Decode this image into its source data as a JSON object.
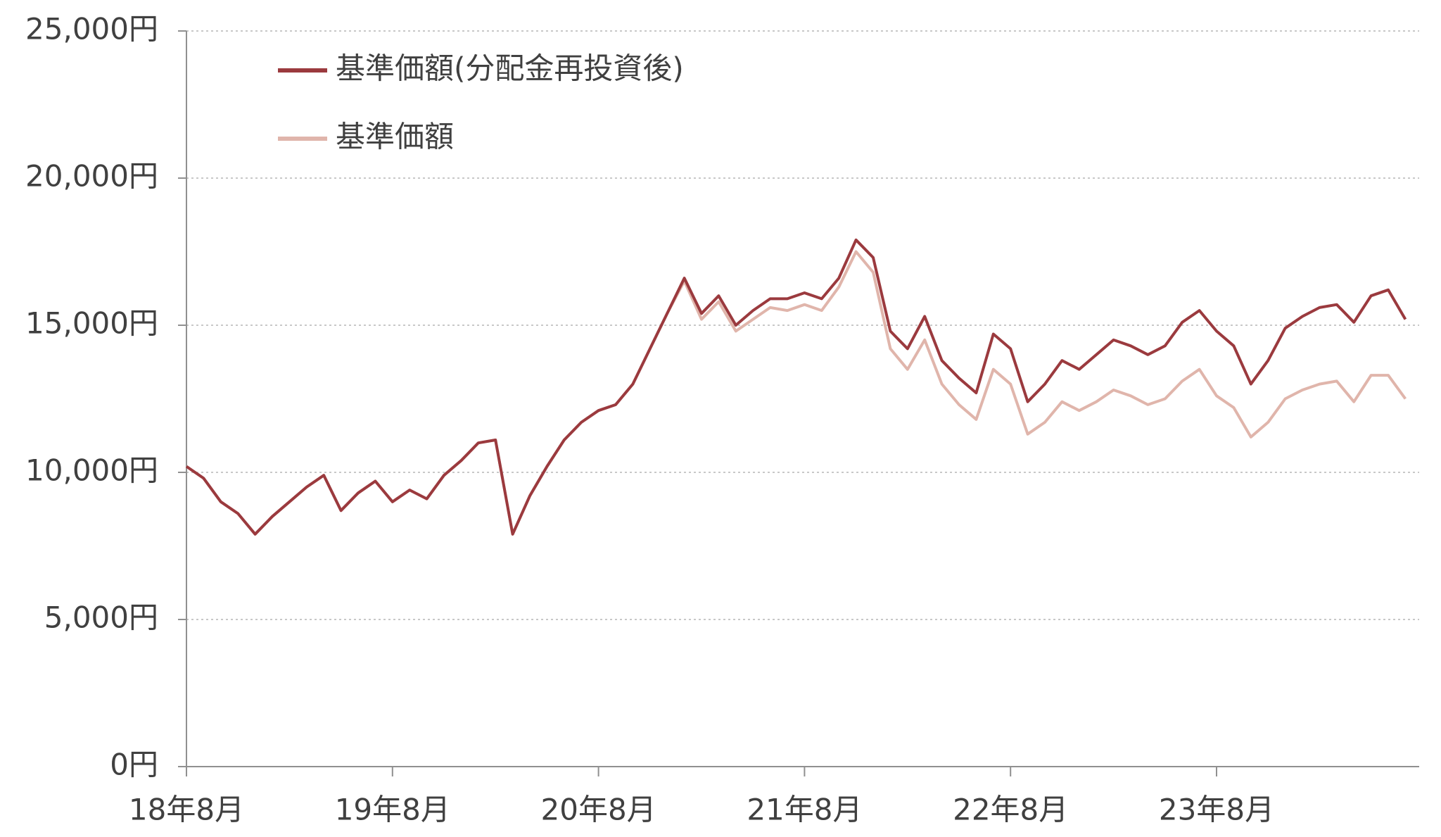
{
  "chart_data": {
    "type": "line",
    "categories": [
      "18年8月",
      null,
      null,
      null,
      null,
      null,
      null,
      null,
      null,
      null,
      null,
      null,
      "19年8月",
      null,
      null,
      null,
      null,
      null,
      null,
      null,
      null,
      null,
      null,
      null,
      "20年8月",
      null,
      null,
      null,
      null,
      null,
      null,
      null,
      null,
      null,
      null,
      null,
      "21年8月",
      null,
      null,
      null,
      null,
      null,
      null,
      null,
      null,
      null,
      null,
      null,
      "22年8月",
      null,
      null,
      null,
      null,
      null,
      null,
      null,
      null,
      null,
      null,
      null,
      "23年8月",
      null,
      null,
      null,
      null,
      null,
      null,
      null,
      null,
      null,
      null,
      null
    ],
    "series": [
      {
        "name": "基準価額(分配金再投資後)",
        "color": "#9b3a3e",
        "values": [
          10200,
          9800,
          9000,
          8600,
          7900,
          8500,
          9000,
          9500,
          9900,
          8700,
          9300,
          9700,
          9000,
          9400,
          9100,
          9900,
          10400,
          11000,
          11100,
          7900,
          9200,
          10200,
          11100,
          11700,
          12100,
          12300,
          13000,
          14200,
          15400,
          16600,
          15400,
          16000,
          15000,
          15500,
          15900,
          15900,
          16100,
          15900,
          16600,
          17900,
          17300,
          14800,
          14200,
          15300,
          13800,
          13200,
          12700,
          14700,
          14200,
          12400,
          13000,
          13800,
          13500,
          14000,
          14500,
          14300,
          14000,
          14300,
          15100,
          15500,
          14800,
          14300,
          13000,
          13800,
          14900,
          15300,
          15600,
          15700,
          15100,
          16000,
          16200,
          15200
        ]
      },
      {
        "name": "基準価額",
        "color": "#e0b5ab",
        "values": [
          10200,
          9800,
          9000,
          8600,
          7900,
          8500,
          9000,
          9500,
          9900,
          8700,
          9300,
          9700,
          9000,
          9400,
          9100,
          9900,
          10400,
          11000,
          11100,
          7900,
          9200,
          10200,
          11100,
          11700,
          12100,
          12300,
          13000,
          14200,
          15400,
          16500,
          15200,
          15800,
          14800,
          15200,
          15600,
          15500,
          15700,
          15500,
          16300,
          17500,
          16800,
          14200,
          13500,
          14500,
          13000,
          12300,
          11800,
          13500,
          13000,
          11300,
          11700,
          12400,
          12100,
          12400,
          12800,
          12600,
          12300,
          12500,
          13100,
          13500,
          12600,
          12200,
          11200,
          11700,
          12500,
          12800,
          13000,
          13100,
          12400,
          13300,
          13300,
          12500
        ]
      }
    ],
    "ylim": [
      0,
      25000
    ],
    "yticks": [
      {
        "value": 0,
        "label": "0円"
      },
      {
        "value": 5000,
        "label": "5,000円"
      },
      {
        "value": 10000,
        "label": "10,000円"
      },
      {
        "value": 15000,
        "label": "15,000円"
      },
      {
        "value": 20000,
        "label": "20,000円"
      },
      {
        "value": 25000,
        "label": "25,000円"
      }
    ],
    "grid": true,
    "legend": "top-left"
  }
}
